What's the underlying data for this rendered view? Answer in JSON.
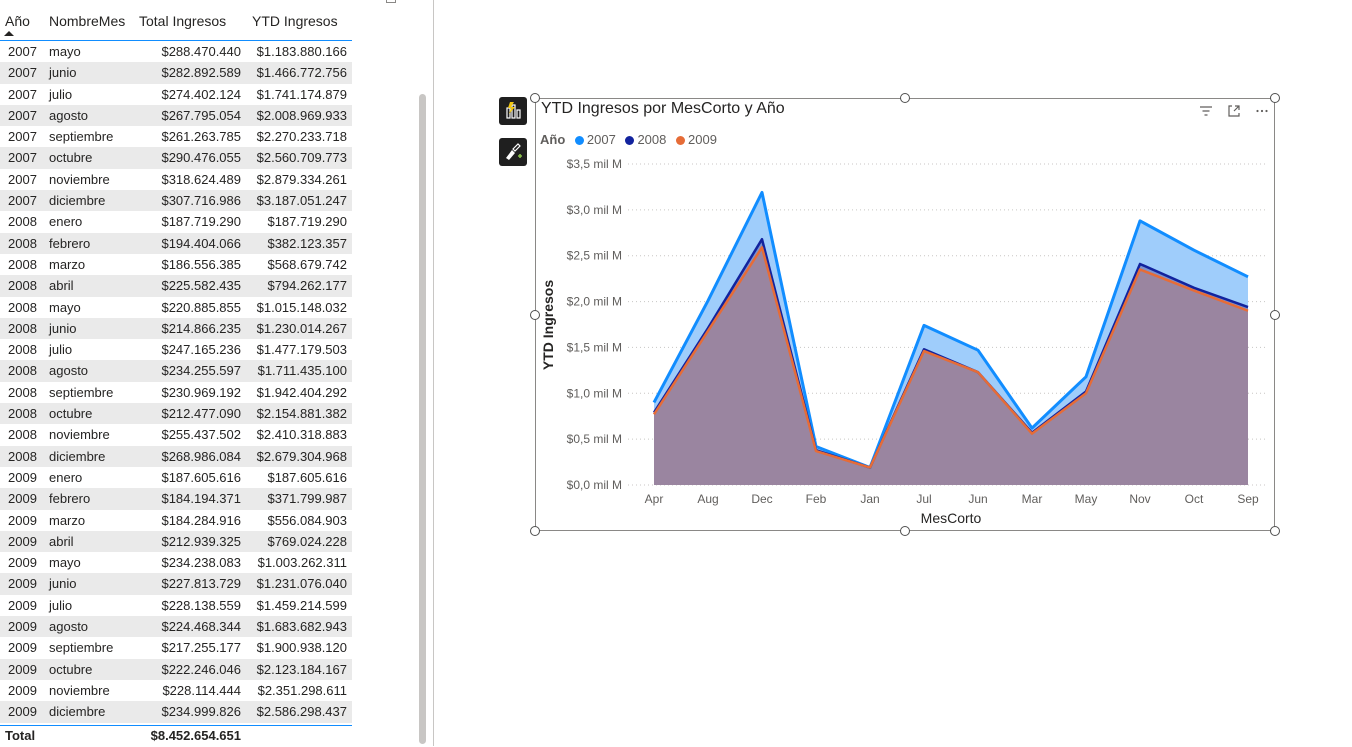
{
  "table": {
    "headers": [
      "Año",
      "NombreMes",
      "Total Ingresos",
      "YTD Ingresos"
    ],
    "rows": [
      [
        "2007",
        "mayo",
        "$288.470.440",
        "$1.183.880.166"
      ],
      [
        "2007",
        "junio",
        "$282.892.589",
        "$1.466.772.756"
      ],
      [
        "2007",
        "julio",
        "$274.402.124",
        "$1.741.174.879"
      ],
      [
        "2007",
        "agosto",
        "$267.795.054",
        "$2.008.969.933"
      ],
      [
        "2007",
        "septiembre",
        "$261.263.785",
        "$2.270.233.718"
      ],
      [
        "2007",
        "octubre",
        "$290.476.055",
        "$2.560.709.773"
      ],
      [
        "2007",
        "noviembre",
        "$318.624.489",
        "$2.879.334.261"
      ],
      [
        "2007",
        "diciembre",
        "$307.716.986",
        "$3.187.051.247"
      ],
      [
        "2008",
        "enero",
        "$187.719.290",
        "$187.719.290"
      ],
      [
        "2008",
        "febrero",
        "$194.404.066",
        "$382.123.357"
      ],
      [
        "2008",
        "marzo",
        "$186.556.385",
        "$568.679.742"
      ],
      [
        "2008",
        "abril",
        "$225.582.435",
        "$794.262.177"
      ],
      [
        "2008",
        "mayo",
        "$220.885.855",
        "$1.015.148.032"
      ],
      [
        "2008",
        "junio",
        "$214.866.235",
        "$1.230.014.267"
      ],
      [
        "2008",
        "julio",
        "$247.165.236",
        "$1.477.179.503"
      ],
      [
        "2008",
        "agosto",
        "$234.255.597",
        "$1.711.435.100"
      ],
      [
        "2008",
        "septiembre",
        "$230.969.192",
        "$1.942.404.292"
      ],
      [
        "2008",
        "octubre",
        "$212.477.090",
        "$2.154.881.382"
      ],
      [
        "2008",
        "noviembre",
        "$255.437.502",
        "$2.410.318.883"
      ],
      [
        "2008",
        "diciembre",
        "$268.986.084",
        "$2.679.304.968"
      ],
      [
        "2009",
        "enero",
        "$187.605.616",
        "$187.605.616"
      ],
      [
        "2009",
        "febrero",
        "$184.194.371",
        "$371.799.987"
      ],
      [
        "2009",
        "marzo",
        "$184.284.916",
        "$556.084.903"
      ],
      [
        "2009",
        "abril",
        "$212.939.325",
        "$769.024.228"
      ],
      [
        "2009",
        "mayo",
        "$234.238.083",
        "$1.003.262.311"
      ],
      [
        "2009",
        "junio",
        "$227.813.729",
        "$1.231.076.040"
      ],
      [
        "2009",
        "julio",
        "$228.138.559",
        "$1.459.214.599"
      ],
      [
        "2009",
        "agosto",
        "$224.468.344",
        "$1.683.682.943"
      ],
      [
        "2009",
        "septiembre",
        "$217.255.177",
        "$1.900.938.120"
      ],
      [
        "2009",
        "octubre",
        "$222.246.046",
        "$2.123.184.167"
      ],
      [
        "2009",
        "noviembre",
        "$228.114.444",
        "$2.351.298.611"
      ],
      [
        "2009",
        "diciembre",
        "$234.999.826",
        "$2.586.298.437"
      ]
    ],
    "total_label": "Total",
    "total_value": "$8.452.654.651"
  },
  "chart": {
    "title": "YTD Ingresos por MesCorto y Año",
    "legend_title": "Año",
    "icons": [
      "filter-icon",
      "focus-mode-icon",
      "more-options-icon"
    ],
    "side_buttons": [
      "build-visual-icon",
      "format-visual-icon"
    ]
  },
  "chart_data": {
    "type": "area",
    "title": "YTD Ingresos por MesCorto y Año",
    "xlabel": "MesCorto",
    "ylabel": "YTD Ingresos",
    "categories": [
      "Apr",
      "Aug",
      "Dec",
      "Feb",
      "Jan",
      "Jul",
      "Jun",
      "Mar",
      "May",
      "Nov",
      "Oct",
      "Sep"
    ],
    "y_tick_labels": [
      "$0,0 mil M",
      "$0,5 mil M",
      "$1,0 mil M",
      "$1,5 mil M",
      "$2,0 mil M",
      "$2,5 mil M",
      "$3,0 mil M",
      "$3,5 mil M"
    ],
    "ylim": [
      0,
      3.5
    ],
    "y_unit": "mil M",
    "grid": true,
    "legend_position": "top-left",
    "series": [
      {
        "name": "2007",
        "color": "#118dff",
        "values": [
          0.9,
          2.01,
          3.19,
          0.42,
          0.19,
          1.74,
          1.47,
          0.62,
          1.18,
          2.88,
          2.56,
          2.27
        ]
      },
      {
        "name": "2008",
        "color": "#12239e",
        "values": [
          0.79,
          1.71,
          2.68,
          0.38,
          0.19,
          1.48,
          1.23,
          0.57,
          1.02,
          2.41,
          2.15,
          1.94
        ]
      },
      {
        "name": "2009",
        "color": "#e66c37",
        "values": [
          0.77,
          1.68,
          2.59,
          0.37,
          0.19,
          1.46,
          1.23,
          0.56,
          1.0,
          2.35,
          2.12,
          1.9
        ]
      }
    ]
  }
}
